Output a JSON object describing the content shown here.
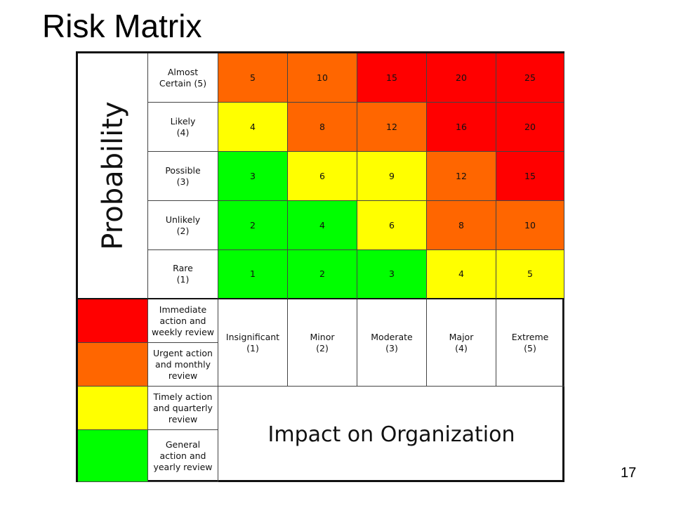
{
  "slide": {
    "title": "Risk Matrix",
    "page_number": "17"
  },
  "colors": {
    "red": "#ff0000",
    "orange": "#ff6600",
    "yellow": "#ffff00",
    "green": "#00ff00"
  },
  "probability_axis_label": "Probability",
  "impact_axis_label": "Impact on Organization",
  "probability_levels": [
    {
      "label": "Almost\nCertain (5)"
    },
    {
      "label": "Likely\n(4)"
    },
    {
      "label": "Possible\n(3)"
    },
    {
      "label": "Unlikely\n(2)"
    },
    {
      "label": "Rare\n(1)"
    }
  ],
  "impact_levels": [
    {
      "label": "Insignificant\n(1)"
    },
    {
      "label": "Minor\n(2)"
    },
    {
      "label": "Moderate\n(3)"
    },
    {
      "label": "Major\n(4)"
    },
    {
      "label": "Extreme\n(5)"
    }
  ],
  "matrix_rows": [
    {
      "values": [
        "5",
        "10",
        "15",
        "20",
        "25"
      ],
      "colors": [
        "orange",
        "orange",
        "red",
        "red",
        "red"
      ]
    },
    {
      "values": [
        "4",
        "8",
        "12",
        "16",
        "20"
      ],
      "colors": [
        "yellow",
        "orange",
        "orange",
        "red",
        "red"
      ]
    },
    {
      "values": [
        "3",
        "6",
        "9",
        "12",
        "15"
      ],
      "colors": [
        "green",
        "yellow",
        "yellow",
        "orange",
        "red"
      ]
    },
    {
      "values": [
        "2",
        "4",
        "6",
        "8",
        "10"
      ],
      "colors": [
        "green",
        "green",
        "yellow",
        "orange",
        "orange"
      ]
    },
    {
      "values": [
        "1",
        "2",
        "3",
        "4",
        "5"
      ],
      "colors": [
        "green",
        "green",
        "green",
        "yellow",
        "yellow"
      ]
    }
  ],
  "legend": [
    {
      "color": "red",
      "text": "Immediate\naction and\nweekly review"
    },
    {
      "color": "orange",
      "text": "Urgent action\nand monthly\nreview"
    },
    {
      "color": "yellow",
      "text": "Timely action\nand quarterly\nreview"
    },
    {
      "color": "green",
      "text": "General\naction and\nyearly review"
    }
  ]
}
